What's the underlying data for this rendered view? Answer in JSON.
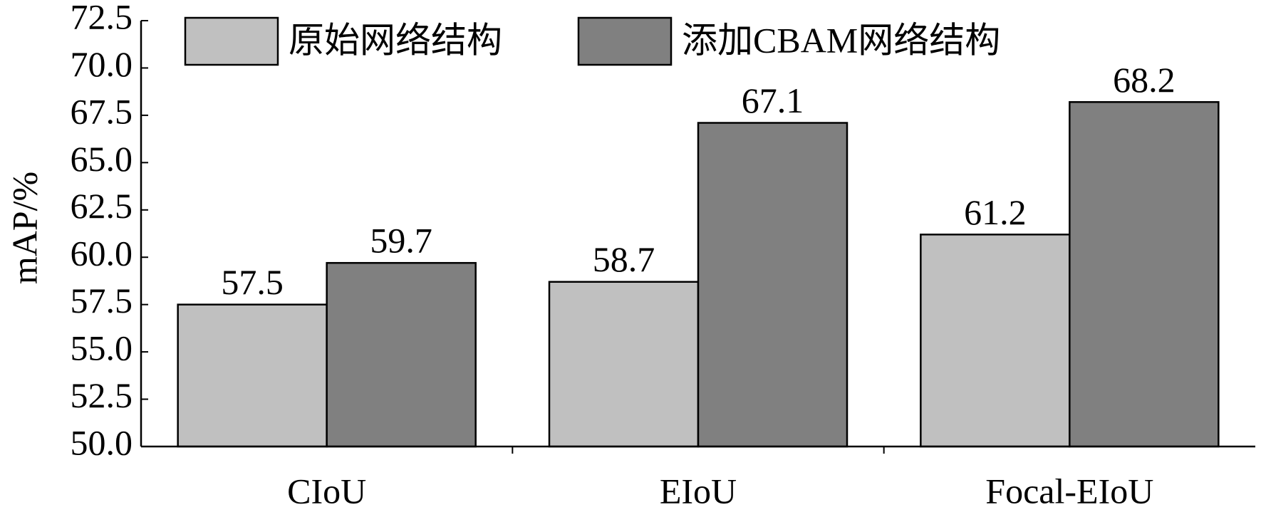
{
  "chart_data": {
    "type": "bar",
    "y_label": "mAP/%",
    "categories": [
      "CIoU",
      "EIoU",
      "Focal-EIoU"
    ],
    "series": [
      {
        "name": "原始网络结构",
        "color": "#c0c0c0",
        "values": [
          57.5,
          58.7,
          61.2
        ]
      },
      {
        "name": "添加CBAM网络结构",
        "color": "#808080",
        "values": [
          59.7,
          67.1,
          68.2
        ]
      }
    ],
    "ylim": [
      50,
      72.5
    ],
    "yticks": [
      {
        "value": 50,
        "label": "50.0"
      },
      52.5,
      {
        "value": 55,
        "label": "55.0"
      },
      57.5,
      {
        "value": 60,
        "label": "60.0"
      },
      62.5,
      {
        "value": 65,
        "label": "65.0"
      },
      67.5,
      {
        "value": 70,
        "label": "70.0"
      },
      72.5
    ],
    "legend": "top-left"
  }
}
